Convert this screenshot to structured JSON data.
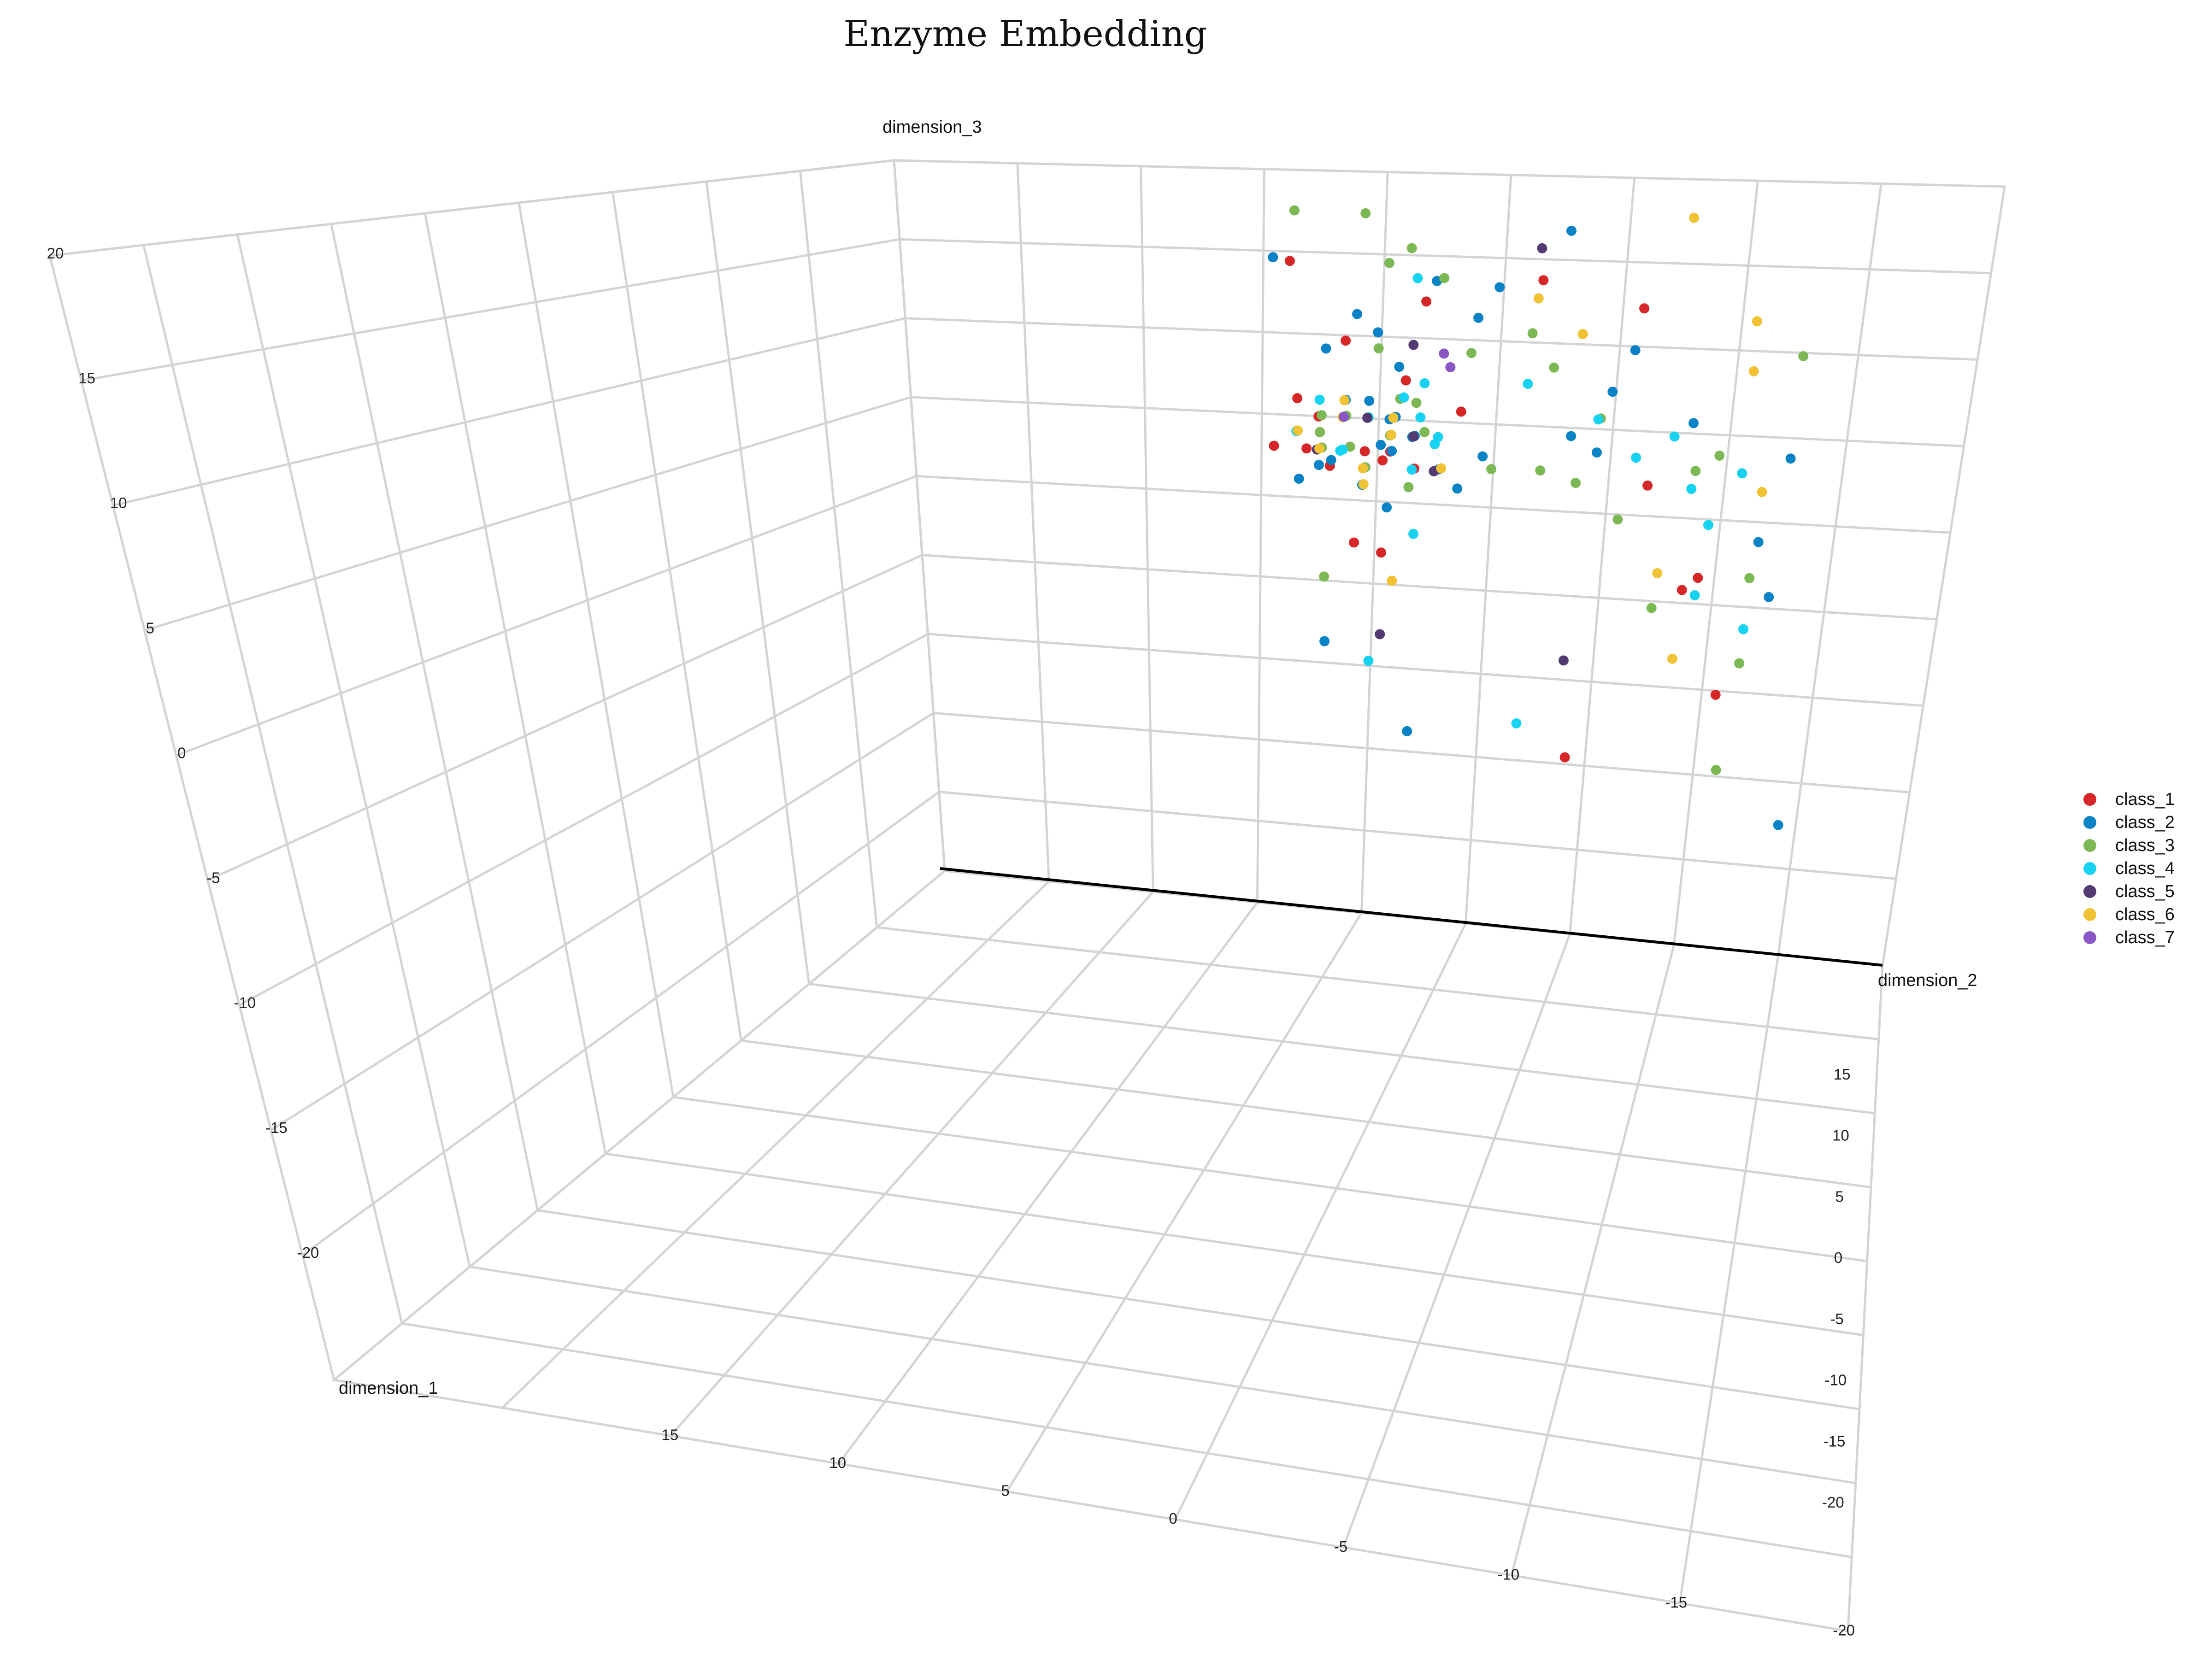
{
  "chart_data": {
    "type": "scatter",
    "title": "Enzyme Embedding",
    "axes": {
      "x": {
        "label": "dimension_1",
        "range": [
          -25,
          20
        ],
        "ticks": [
          -20,
          -15,
          -10,
          -5,
          0,
          5,
          10,
          15
        ]
      },
      "y": {
        "label": "dimension_2",
        "range": [
          -25,
          20
        ],
        "ticks": [
          -20,
          -15,
          -10,
          -5,
          0,
          5,
          10,
          15
        ]
      },
      "z": {
        "label": "dimension_3",
        "range": [
          -25,
          20
        ],
        "ticks": [
          -20,
          -15,
          -10,
          -5,
          0,
          5,
          10,
          15,
          20
        ]
      }
    },
    "grid": true,
    "legend_position": "right",
    "series": [
      {
        "name": "class_1",
        "color": "#d62728",
        "points": [
          [
            -9,
            -6,
            5
          ],
          [
            -10,
            -4,
            4
          ],
          [
            -8,
            -5,
            6
          ],
          [
            -8.2,
            -3,
            4
          ],
          [
            -10.5,
            -6,
            6
          ],
          [
            -9.5,
            -5.5,
            3
          ],
          [
            -10,
            -6.5,
            4
          ],
          [
            -4,
            -2,
            13
          ],
          [
            -12,
            -3,
            -2
          ],
          [
            10,
            -6,
            10
          ],
          [
            2,
            -3,
            8
          ],
          [
            2,
            -8,
            15
          ],
          [
            10,
            -1,
            6
          ],
          [
            12,
            2,
            14
          ],
          [
            14,
            7,
            2
          ],
          [
            13,
            9,
            -4
          ],
          [
            6,
            10,
            -3
          ],
          [
            -3,
            7,
            13
          ],
          [
            13,
            11,
            -10
          ],
          [
            3,
            -5,
            -2
          ],
          [
            3,
            5,
            -14
          ],
          [
            5,
            -4,
            3
          ],
          [
            -8,
            -8,
            4
          ],
          [
            -9,
            -7,
            7
          ],
          [
            -7,
            -2,
            3
          ]
        ]
      },
      {
        "name": "class_2",
        "color": "#0a83c6",
        "points": [
          [
            -9,
            -7,
            5
          ],
          [
            -10,
            -3,
            6
          ],
          [
            -8,
            -4,
            7
          ],
          [
            -7,
            -3,
            4
          ],
          [
            -9,
            -6,
            3
          ],
          [
            -11,
            -4,
            2
          ],
          [
            -8,
            -2,
            5
          ],
          [
            -9,
            1,
            4
          ],
          [
            -10,
            -4,
            3
          ],
          [
            -8,
            -5,
            7
          ],
          [
            -4,
            1,
            14
          ],
          [
            -6,
            -6,
            10
          ],
          [
            -4,
            -3,
            9
          ],
          [
            4,
            -2,
            14
          ],
          [
            5,
            4,
            5
          ],
          [
            8,
            5,
            4
          ],
          [
            12,
            3,
            17
          ],
          [
            -3,
            6,
            8
          ],
          [
            1,
            -6,
            3
          ],
          [
            8,
            9,
            6
          ],
          [
            13,
            6,
            10
          ],
          [
            15,
            12,
            -1
          ],
          [
            14,
            13,
            4
          ],
          [
            10,
            -4,
            0
          ],
          [
            -2,
            -2,
            -13
          ],
          [
            -1,
            -5,
            12
          ],
          [
            3,
            -4,
            4
          ],
          [
            -6,
            -7,
            2
          ],
          [
            0,
            0,
            12
          ],
          [
            -3,
            -4,
            11
          ],
          [
            5,
            15,
            -17
          ],
          [
            8,
            -9,
            15
          ],
          [
            10,
            13,
            -4
          ],
          [
            0,
            -6,
            -8
          ],
          [
            -9,
            0,
            2
          ],
          [
            -6,
            -1,
            3
          ],
          [
            -5,
            -3,
            6
          ],
          [
            -10,
            -2,
            5
          ]
        ]
      },
      {
        "name": "class_3",
        "color": "#7cb955",
        "points": [
          [
            -9,
            -6,
            5
          ],
          [
            -8,
            -3,
            5
          ],
          [
            -10,
            -5,
            6
          ],
          [
            -9,
            -4,
            3
          ],
          [
            -7,
            -6,
            4
          ],
          [
            -8,
            -2,
            7
          ],
          [
            -11,
            -2,
            2
          ],
          [
            3,
            -5,
            18
          ],
          [
            2,
            -3,
            16
          ],
          [
            5,
            -8,
            18
          ],
          [
            4,
            -4,
            15
          ],
          [
            -4,
            0,
            10
          ],
          [
            10,
            -2,
            14
          ],
          [
            6,
            2,
            11
          ],
          [
            6,
            3,
            9
          ],
          [
            -7,
            -5,
            6
          ],
          [
            -3,
            -5,
            4
          ],
          [
            -2,
            -3,
            7
          ],
          [
            1,
            3,
            3
          ],
          [
            11,
            12,
            -8
          ],
          [
            11,
            6,
            0
          ],
          [
            14,
            9,
            3
          ],
          [
            12,
            4,
            2
          ],
          [
            11,
            12,
            -3
          ],
          [
            9,
            5,
            6
          ],
          [
            -2,
            -6,
            -4
          ],
          [
            0,
            -2,
            5
          ],
          [
            -2,
            -4,
            10
          ],
          [
            8,
            8,
            -5
          ],
          [
            2,
            12,
            -14
          ],
          [
            -1,
            1,
            3
          ],
          [
            14,
            13,
            10
          ],
          [
            13,
            10,
            4
          ],
          [
            -9,
            -3,
            5
          ],
          [
            -8,
            -6,
            6
          ]
        ]
      },
      {
        "name": "class_4",
        "color": "#17d3f1",
        "points": [
          [
            -9,
            -5,
            4
          ],
          [
            -10,
            -6,
            7
          ],
          [
            -8,
            -4,
            6
          ],
          [
            -9,
            -2,
            3
          ],
          [
            -11,
            -5,
            4
          ],
          [
            -4,
            -2,
            6
          ],
          [
            -2,
            -2,
            8
          ],
          [
            -1,
            -1,
            9
          ],
          [
            1,
            -3,
            7
          ],
          [
            5,
            2,
            8
          ],
          [
            8,
            -3,
            14
          ],
          [
            7,
            5,
            6
          ],
          [
            9,
            -2,
            4
          ],
          [
            10,
            10,
            0
          ],
          [
            12,
            9,
            2
          ],
          [
            11,
            12,
            -6
          ],
          [
            13,
            8,
            5
          ],
          [
            14,
            11,
            3
          ],
          [
            0,
            -4,
            -9
          ],
          [
            -3,
            3,
            -12
          ],
          [
            -5,
            -2,
            -1
          ],
          [
            2,
            7,
            4
          ],
          [
            5,
            10,
            -4
          ],
          [
            -9,
            -7,
            5
          ],
          [
            -8,
            -1,
            5
          ]
        ]
      },
      {
        "name": "class_5",
        "color": "#533a71",
        "points": [
          [
            -9,
            -4,
            6
          ],
          [
            -11,
            -6,
            4
          ],
          [
            -10,
            -1,
            3
          ],
          [
            -10,
            -3,
            -7
          ],
          [
            -5,
            5,
            -8
          ],
          [
            9,
            2,
            16
          ],
          [
            7,
            -3,
            10
          ],
          [
            -9,
            -2,
            5
          ]
        ]
      },
      {
        "name": "class_6",
        "color": "#f1c233",
        "points": [
          [
            -9,
            -6,
            4
          ],
          [
            -10,
            -5,
            6
          ],
          [
            -8,
            -3,
            5
          ],
          [
            -9,
            -5,
            7
          ],
          [
            -11,
            -4,
            3
          ],
          [
            -8,
            -7,
            5
          ],
          [
            -7,
            -3,
            6
          ],
          [
            -4,
            -1,
            3
          ],
          [
            -2,
            -3,
            -4
          ],
          [
            11,
            8,
            18
          ],
          [
            9,
            2,
            13
          ],
          [
            8,
            4,
            11
          ],
          [
            12,
            11,
            12
          ],
          [
            11,
            9,
            -8
          ],
          [
            13,
            12,
            2
          ],
          [
            10,
            8,
            -3
          ],
          [
            14,
            11,
            9
          ],
          [
            -10,
            -4,
            2
          ]
        ]
      },
      {
        "name": "class_7",
        "color": "#8a55c5",
        "points": [
          [
            -7,
            -1,
            10
          ],
          [
            -1,
            -1,
            9
          ],
          [
            -9,
            -5,
            6
          ]
        ]
      }
    ]
  }
}
